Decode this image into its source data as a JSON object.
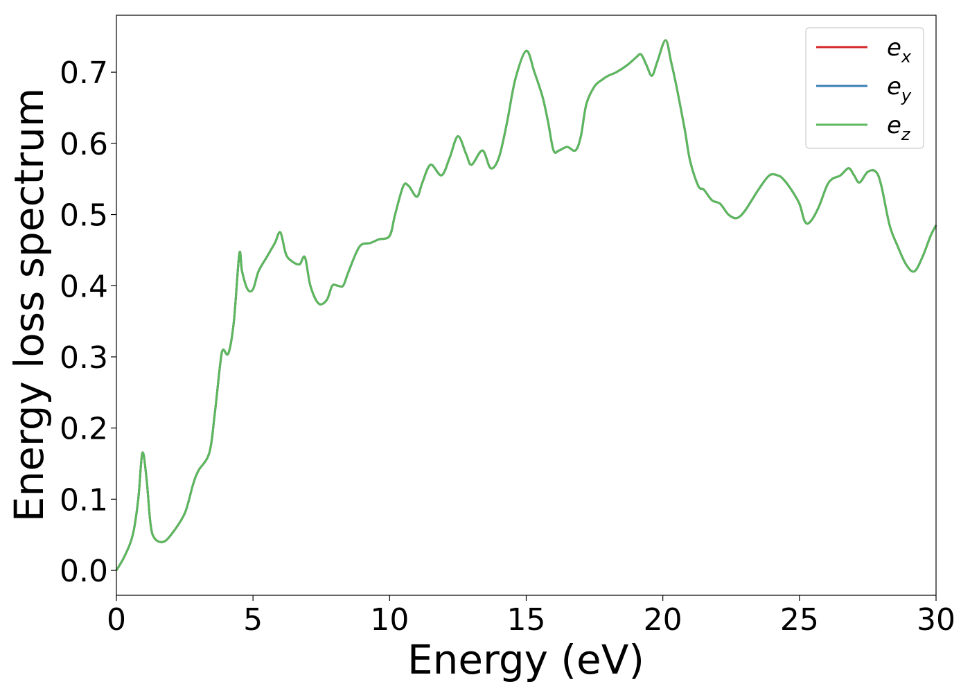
{
  "chart_data": {
    "type": "line",
    "title": "",
    "xlabel": "Energy (eV)",
    "ylabel": "Energy loss spectrum",
    "xlim": [
      0,
      30
    ],
    "ylim": [
      -0.035,
      0.78
    ],
    "xticks": [
      0,
      5,
      10,
      15,
      20,
      25,
      30
    ],
    "xtick_labels": [
      "0",
      "5",
      "10",
      "15",
      "20",
      "25",
      "30"
    ],
    "yticks": [
      0.0,
      0.1,
      0.2,
      0.3,
      0.4,
      0.5,
      0.6,
      0.7
    ],
    "ytick_labels": [
      "0.0",
      "0.1",
      "0.2",
      "0.3",
      "0.4",
      "0.5",
      "0.6",
      "0.7"
    ],
    "grid": false,
    "legend_position": "top-right",
    "x": [
      0,
      0.3,
      0.6,
      0.8,
      0.95,
      1.1,
      1.25,
      1.4,
      1.7,
      2.0,
      2.5,
      2.8,
      3.0,
      3.4,
      3.6,
      3.8,
      3.9,
      4.1,
      4.3,
      4.5,
      4.6,
      4.8,
      5.0,
      5.2,
      5.5,
      5.8,
      6.0,
      6.2,
      6.4,
      6.7,
      6.9,
      7.1,
      7.4,
      7.7,
      7.9,
      8.1,
      8.3,
      8.5,
      8.9,
      9.3,
      9.6,
      10.0,
      10.2,
      10.5,
      10.7,
      11.0,
      11.2,
      11.5,
      11.9,
      12.2,
      12.5,
      12.8,
      13.0,
      13.4,
      13.7,
      14.0,
      14.3,
      14.6,
      15.0,
      15.3,
      15.6,
      15.8,
      16.0,
      16.2,
      16.5,
      16.8,
      17.0,
      17.2,
      17.5,
      17.8,
      18.0,
      18.3,
      18.7,
      19.0,
      19.2,
      19.4,
      19.6,
      19.8,
      20.1,
      20.3,
      20.5,
      20.8,
      21.0,
      21.3,
      21.5,
      21.8,
      22.1,
      22.4,
      22.7,
      23.0,
      23.5,
      23.9,
      24.2,
      24.4,
      24.7,
      25.0,
      25.2,
      25.4,
      25.7,
      26.0,
      26.2,
      26.5,
      26.8,
      27.0,
      27.2,
      27.5,
      27.8,
      28.0,
      28.3,
      28.6,
      28.9,
      29.2,
      29.5,
      29.8,
      30.0
    ],
    "series": [
      {
        "name": "e_x",
        "color": "#d62728",
        "values": [
          0.0,
          0.02,
          0.05,
          0.1,
          0.165,
          0.13,
          0.065,
          0.045,
          0.04,
          0.05,
          0.08,
          0.12,
          0.14,
          0.165,
          0.22,
          0.29,
          0.31,
          0.305,
          0.35,
          0.445,
          0.42,
          0.395,
          0.395,
          0.42,
          0.44,
          0.46,
          0.475,
          0.445,
          0.435,
          0.43,
          0.44,
          0.4,
          0.375,
          0.38,
          0.4,
          0.4,
          0.4,
          0.42,
          0.455,
          0.46,
          0.465,
          0.47,
          0.5,
          0.54,
          0.54,
          0.525,
          0.545,
          0.57,
          0.555,
          0.58,
          0.61,
          0.585,
          0.57,
          0.59,
          0.565,
          0.58,
          0.63,
          0.69,
          0.73,
          0.7,
          0.665,
          0.63,
          0.59,
          0.59,
          0.595,
          0.59,
          0.61,
          0.655,
          0.68,
          0.69,
          0.695,
          0.7,
          0.71,
          0.72,
          0.725,
          0.71,
          0.695,
          0.715,
          0.745,
          0.715,
          0.68,
          0.62,
          0.575,
          0.54,
          0.535,
          0.52,
          0.515,
          0.5,
          0.495,
          0.505,
          0.535,
          0.555,
          0.555,
          0.55,
          0.535,
          0.515,
          0.49,
          0.49,
          0.51,
          0.54,
          0.55,
          0.555,
          0.565,
          0.555,
          0.545,
          0.56,
          0.56,
          0.54,
          0.485,
          0.455,
          0.43,
          0.42,
          0.44,
          0.47,
          0.485
        ]
      },
      {
        "name": "e_y",
        "color": "#3a7fb5",
        "values": [
          0.0,
          0.02,
          0.05,
          0.1,
          0.165,
          0.13,
          0.065,
          0.045,
          0.04,
          0.05,
          0.08,
          0.12,
          0.14,
          0.165,
          0.22,
          0.29,
          0.31,
          0.305,
          0.35,
          0.445,
          0.42,
          0.395,
          0.395,
          0.42,
          0.44,
          0.46,
          0.475,
          0.445,
          0.435,
          0.43,
          0.44,
          0.4,
          0.375,
          0.38,
          0.4,
          0.4,
          0.4,
          0.42,
          0.455,
          0.46,
          0.465,
          0.47,
          0.5,
          0.54,
          0.54,
          0.525,
          0.545,
          0.57,
          0.555,
          0.58,
          0.61,
          0.585,
          0.57,
          0.59,
          0.565,
          0.58,
          0.63,
          0.69,
          0.73,
          0.7,
          0.665,
          0.63,
          0.59,
          0.59,
          0.595,
          0.59,
          0.61,
          0.655,
          0.68,
          0.69,
          0.695,
          0.7,
          0.71,
          0.72,
          0.725,
          0.71,
          0.695,
          0.715,
          0.745,
          0.715,
          0.68,
          0.62,
          0.575,
          0.54,
          0.535,
          0.52,
          0.515,
          0.5,
          0.495,
          0.505,
          0.535,
          0.555,
          0.555,
          0.55,
          0.535,
          0.515,
          0.49,
          0.49,
          0.51,
          0.54,
          0.55,
          0.555,
          0.565,
          0.555,
          0.545,
          0.56,
          0.56,
          0.54,
          0.485,
          0.455,
          0.43,
          0.42,
          0.44,
          0.47,
          0.485
        ]
      },
      {
        "name": "e_z",
        "color": "#5cb85c",
        "values": [
          0.0,
          0.02,
          0.05,
          0.1,
          0.165,
          0.13,
          0.065,
          0.045,
          0.04,
          0.05,
          0.08,
          0.12,
          0.14,
          0.165,
          0.22,
          0.29,
          0.31,
          0.305,
          0.35,
          0.445,
          0.42,
          0.395,
          0.395,
          0.42,
          0.44,
          0.46,
          0.475,
          0.445,
          0.435,
          0.43,
          0.44,
          0.4,
          0.375,
          0.38,
          0.4,
          0.4,
          0.4,
          0.42,
          0.455,
          0.46,
          0.465,
          0.47,
          0.5,
          0.54,
          0.54,
          0.525,
          0.545,
          0.57,
          0.555,
          0.58,
          0.61,
          0.585,
          0.57,
          0.59,
          0.565,
          0.58,
          0.63,
          0.69,
          0.73,
          0.7,
          0.665,
          0.63,
          0.59,
          0.59,
          0.595,
          0.59,
          0.61,
          0.655,
          0.68,
          0.69,
          0.695,
          0.7,
          0.71,
          0.72,
          0.725,
          0.71,
          0.695,
          0.715,
          0.745,
          0.715,
          0.68,
          0.62,
          0.575,
          0.54,
          0.535,
          0.52,
          0.515,
          0.5,
          0.495,
          0.505,
          0.535,
          0.555,
          0.555,
          0.55,
          0.535,
          0.515,
          0.49,
          0.49,
          0.51,
          0.54,
          0.55,
          0.555,
          0.565,
          0.555,
          0.545,
          0.56,
          0.56,
          0.54,
          0.485,
          0.455,
          0.43,
          0.42,
          0.44,
          0.47,
          0.485
        ]
      }
    ],
    "legend": [
      {
        "base": "e",
        "sub": "x"
      },
      {
        "base": "e",
        "sub": "y"
      },
      {
        "base": "e",
        "sub": "z"
      }
    ]
  }
}
